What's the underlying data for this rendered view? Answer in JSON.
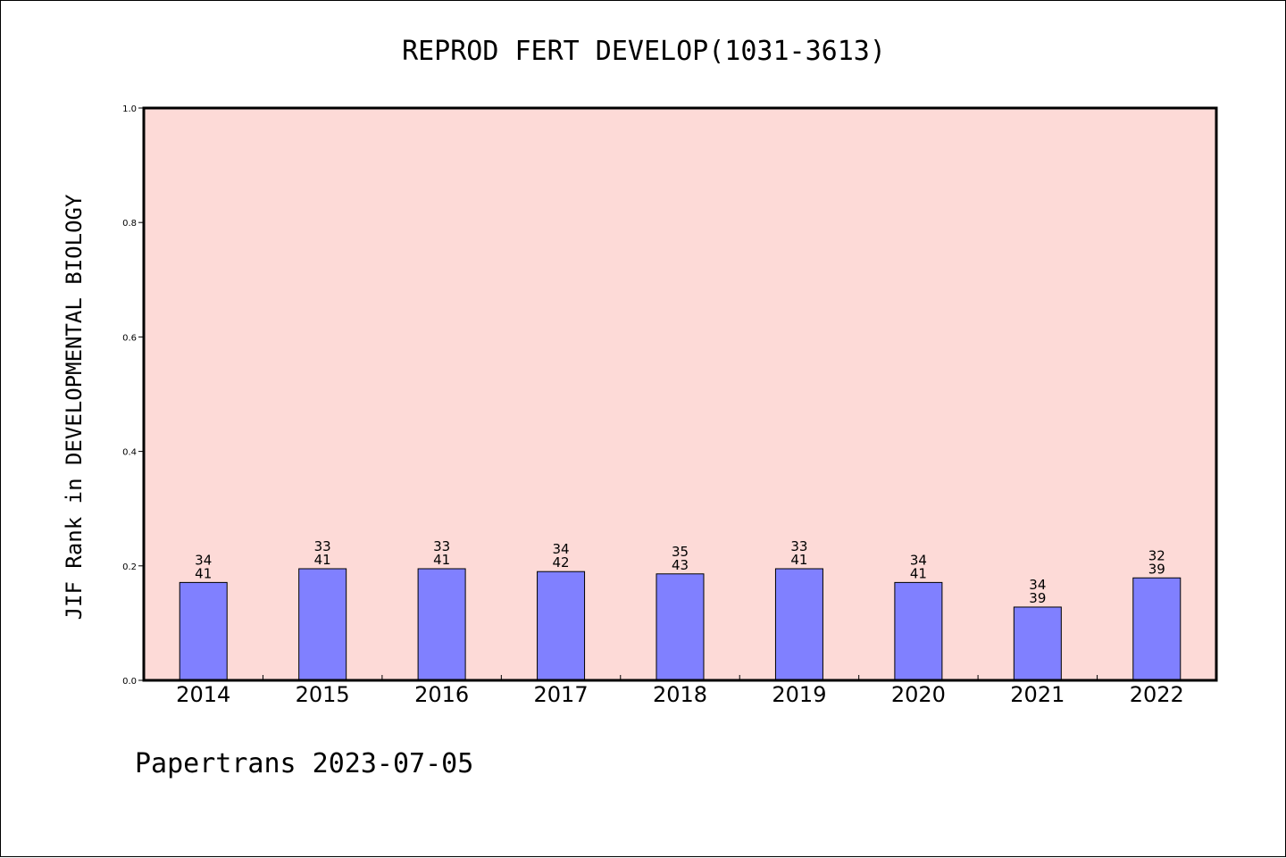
{
  "chart_data": {
    "type": "bar",
    "title": "REPROD FERT DEVELOP(1031-3613)",
    "ylabel": "JIF Rank in DEVELOPMENTAL BIOLOGY",
    "xlabel": "",
    "ylim": [
      0.0,
      1.0
    ],
    "yticks": [
      "0.0",
      "0.2",
      "0.4",
      "0.6",
      "0.8",
      "1.0"
    ],
    "categories": [
      "2014",
      "2015",
      "2016",
      "2017",
      "2018",
      "2019",
      "2020",
      "2021",
      "2022"
    ],
    "rank": [
      34,
      33,
      33,
      34,
      35,
      33,
      34,
      34,
      32
    ],
    "total": [
      41,
      41,
      41,
      42,
      43,
      41,
      41,
      39,
      39
    ],
    "values": [
      0.171,
      0.195,
      0.195,
      0.19,
      0.186,
      0.195,
      0.171,
      0.128,
      0.179
    ],
    "grid": false,
    "plot_background": "#fddad7",
    "bar_color": "#8080ff"
  },
  "footer": "Papertrans 2023-07-05"
}
